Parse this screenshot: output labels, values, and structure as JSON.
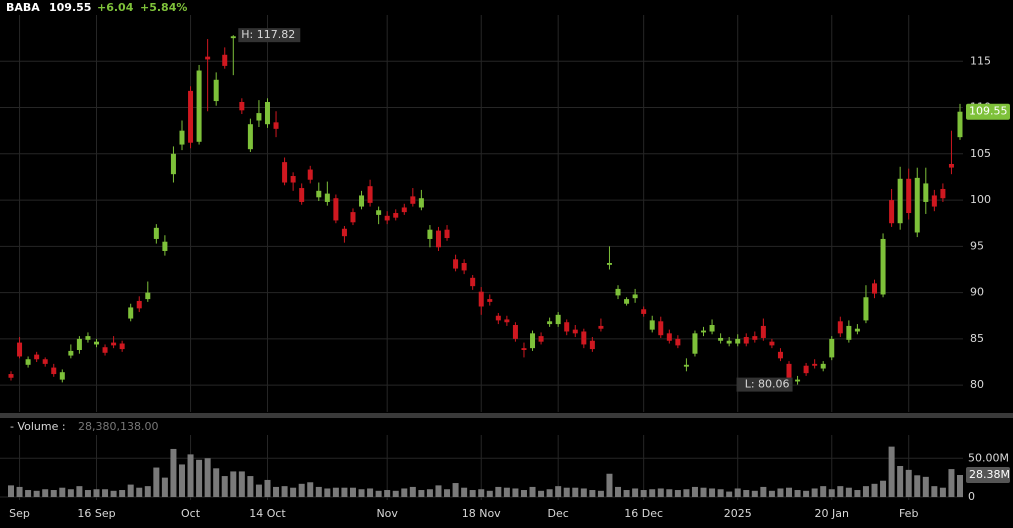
{
  "chart_data": {
    "type": "candlestick",
    "header": {
      "symbol": "BABA",
      "last": "109.55",
      "change": "+6.04",
      "change_percent": "+5.84%"
    },
    "categories": [
      null,
      "Sep",
      null,
      null,
      null,
      null,
      null,
      null,
      null,
      null,
      "16 Sep",
      null,
      null,
      null,
      null,
      null,
      null,
      null,
      null,
      null,
      null,
      "Oct",
      null,
      null,
      null,
      null,
      null,
      null,
      null,
      null,
      "14 Oct",
      null,
      null,
      null,
      null,
      null,
      null,
      null,
      null,
      null,
      null,
      null,
      null,
      null,
      "Nov",
      null,
      null,
      null,
      null,
      null,
      null,
      null,
      null,
      null,
      null,
      "18 Nov",
      null,
      null,
      null,
      null,
      null,
      null,
      null,
      null,
      "Dec",
      null,
      null,
      null,
      null,
      null,
      null,
      null,
      null,
      null,
      "16 Dec",
      null,
      null,
      null,
      null,
      null,
      null,
      null,
      null,
      null,
      null,
      "2025",
      null,
      null,
      null,
      null,
      null,
      null,
      null,
      null,
      null,
      null,
      "20 Jan",
      null,
      null,
      null,
      null,
      null,
      null,
      null,
      null,
      "Feb",
      null,
      null,
      null,
      null,
      null,
      null
    ],
    "open": [
      81.2,
      84.6,
      82.2,
      83.3,
      82.8,
      81.9,
      80.6,
      83.2,
      83.8,
      84.9,
      84.4,
      84.1,
      84.6,
      84.5,
      87.2,
      89.1,
      89.3,
      95.8,
      94.5,
      102.8,
      106.0,
      111.8,
      106.3,
      115.5,
      110.7,
      115.7,
      117.5,
      110.6,
      105.5,
      108.6,
      108.2,
      108.4,
      104.1,
      102.6,
      101.3,
      103.3,
      100.3,
      99.8,
      100.2,
      96.9,
      98.7,
      99.3,
      101.5,
      98.4,
      98.3,
      98.6,
      99.2,
      100.4,
      99.2,
      95.8,
      96.7,
      96.8,
      93.6,
      93.2,
      91.6,
      90.1,
      89.3,
      87.5,
      87.1,
      86.5,
      84.0,
      84.0,
      85.3,
      86.6,
      86.6,
      86.8,
      86.0,
      85.8,
      84.8,
      86.4,
      93.0,
      89.7,
      88.8,
      89.4,
      88.2,
      86.0,
      86.9,
      85.6,
      85.0,
      82.0,
      83.4,
      85.7,
      85.8,
      84.8,
      84.5,
      84.5,
      85.2,
      85.3,
      86.4,
      84.7,
      83.6,
      82.3,
      80.4,
      82.1,
      82.3,
      81.8,
      83.0,
      86.9,
      84.9,
      85.8,
      87.0,
      91.0,
      89.8,
      100.0,
      97.5,
      102.3,
      96.5,
      99.8,
      100.5,
      101.2,
      103.9,
      106.8
    ],
    "high": [
      81.5,
      85.2,
      83.1,
      83.6,
      83.0,
      82.3,
      81.7,
      84.4,
      85.3,
      85.7,
      85.0,
      84.4,
      85.3,
      84.8,
      88.8,
      89.6,
      91.2,
      97.4,
      96.2,
      105.8,
      108.6,
      112.3,
      114.6,
      117.4,
      113.8,
      116.5,
      117.82,
      111.0,
      108.8,
      110.8,
      111.0,
      109.6,
      104.6,
      103.0,
      101.8,
      103.7,
      101.9,
      102.0,
      100.6,
      97.2,
      99.1,
      101.0,
      102.2,
      99.3,
      98.8,
      99.0,
      99.6,
      101.3,
      101.1,
      97.3,
      97.1,
      97.3,
      94.1,
      93.6,
      91.9,
      90.6,
      89.8,
      87.8,
      87.5,
      86.8,
      84.6,
      85.9,
      85.7,
      87.3,
      87.9,
      87.1,
      86.5,
      86.1,
      85.2,
      87.2,
      95.0,
      90.8,
      89.5,
      90.4,
      88.5,
      87.5,
      87.4,
      86.0,
      85.4,
      82.9,
      85.9,
      86.3,
      87.1,
      85.6,
      85.2,
      85.5,
      85.6,
      85.8,
      87.2,
      85.0,
      84.0,
      82.6,
      81.0,
      82.4,
      82.8,
      82.6,
      85.3,
      87.4,
      87.0,
      86.6,
      90.8,
      91.4,
      96.4,
      101.2,
      103.6,
      103.4,
      103.5,
      103.5,
      101.1,
      101.8,
      107.5,
      110.4
    ],
    "low": [
      80.5,
      82.9,
      81.9,
      82.5,
      82.0,
      80.9,
      80.3,
      82.9,
      83.4,
      84.6,
      84.1,
      83.2,
      84.0,
      83.6,
      86.9,
      87.9,
      89.0,
      95.3,
      94.0,
      101.9,
      105.4,
      105.6,
      106.0,
      109.6,
      110.2,
      114.2,
      113.5,
      109.3,
      105.2,
      107.9,
      107.8,
      106.8,
      101.6,
      101.0,
      99.5,
      101.8,
      99.9,
      99.4,
      97.5,
      95.4,
      97.3,
      99.0,
      99.3,
      97.4,
      97.4,
      97.8,
      98.4,
      99.3,
      98.9,
      94.9,
      94.5,
      95.6,
      92.3,
      92.0,
      90.3,
      87.6,
      88.6,
      86.6,
      86.4,
      84.7,
      83.0,
      83.7,
      84.4,
      86.3,
      86.3,
      85.4,
      85.2,
      84.0,
      83.6,
      85.8,
      92.5,
      89.3,
      88.6,
      88.9,
      87.4,
      85.7,
      85.1,
      84.5,
      84.0,
      81.5,
      83.1,
      85.3,
      85.5,
      84.5,
      84.2,
      84.2,
      84.2,
      84.6,
      84.8,
      84.0,
      82.6,
      80.5,
      80.06,
      81.0,
      81.8,
      81.5,
      82.7,
      85.2,
      84.6,
      85.5,
      86.7,
      89.4,
      89.5,
      97.1,
      96.8,
      97.9,
      96.0,
      98.5,
      98.8,
      99.8,
      102.8,
      106.5
    ],
    "close": [
      80.8,
      83.1,
      82.8,
      82.8,
      82.3,
      81.2,
      81.4,
      83.7,
      85.0,
      85.3,
      84.7,
      83.5,
      84.3,
      83.9,
      88.4,
      88.3,
      90.0,
      97.0,
      95.5,
      105.0,
      107.5,
      106.2,
      114.0,
      115.2,
      113.0,
      114.5,
      117.7,
      109.7,
      108.2,
      109.4,
      110.6,
      107.7,
      101.9,
      101.9,
      99.8,
      102.2,
      101.0,
      100.7,
      97.8,
      96.1,
      97.6,
      100.5,
      99.7,
      98.9,
      97.8,
      98.1,
      98.7,
      99.6,
      100.2,
      96.8,
      94.9,
      95.9,
      92.6,
      92.4,
      90.7,
      88.5,
      89.0,
      87.0,
      86.8,
      85.0,
      83.8,
      85.6,
      84.7,
      86.9,
      87.6,
      85.8,
      85.6,
      84.4,
      83.9,
      86.1,
      93.2,
      90.4,
      89.3,
      89.8,
      87.7,
      87.0,
      85.4,
      84.8,
      84.3,
      82.2,
      85.6,
      85.9,
      86.5,
      85.1,
      84.8,
      85.0,
      84.5,
      84.9,
      85.1,
      84.3,
      82.9,
      80.8,
      80.6,
      81.3,
      82.1,
      82.3,
      85.0,
      85.6,
      86.4,
      86.1,
      89.5,
      89.9,
      95.8,
      97.5,
      102.3,
      98.6,
      102.4,
      101.8,
      99.3,
      100.2,
      103.51,
      109.55
    ],
    "volume": [
      15000000,
      13000000,
      9000000,
      8000000,
      10000000,
      9000000,
      12000000,
      10000000,
      14000000,
      9000000,
      10000000,
      10000000,
      8000000,
      9000000,
      16000000,
      12000000,
      14000000,
      38000000,
      25000000,
      62000000,
      42000000,
      55000000,
      48000000,
      50000000,
      37000000,
      27000000,
      33000000,
      33000000,
      27000000,
      16000000,
      22000000,
      13000000,
      14000000,
      12000000,
      17000000,
      19000000,
      13000000,
      11000000,
      12000000,
      12000000,
      12000000,
      10000000,
      11000000,
      8000000,
      9000000,
      8000000,
      11000000,
      13000000,
      9000000,
      10000000,
      15000000,
      10000000,
      18000000,
      12000000,
      9000000,
      10000000,
      8000000,
      13000000,
      12000000,
      11000000,
      9000000,
      13000000,
      8000000,
      10000000,
      14000000,
      12000000,
      12000000,
      11000000,
      9000000,
      8000000,
      30000000,
      13000000,
      9000000,
      11000000,
      9000000,
      10000000,
      11000000,
      10000000,
      9000000,
      10000000,
      13000000,
      12000000,
      11000000,
      10000000,
      7000000,
      11000000,
      9000000,
      8000000,
      13000000,
      8000000,
      11000000,
      12000000,
      9000000,
      8000000,
      11000000,
      14000000,
      10000000,
      14000000,
      12000000,
      9000000,
      14000000,
      17000000,
      21000000,
      65000000,
      40000000,
      35000000,
      28000000,
      26000000,
      14000000,
      12000000,
      36000000,
      28380138
    ],
    "up_color": "#7ec13a",
    "down_color": "#cf1820",
    "volume_color": "#7a7a7a",
    "ylim": [
      77.1,
      120
    ],
    "yticks": [
      80,
      85,
      90,
      95,
      100,
      105,
      110,
      115
    ],
    "volume_ylim": [
      0,
      80000000
    ],
    "volume_yticks": [
      0,
      {
        "value": 50000000,
        "label": "50.00M"
      }
    ],
    "volume_legend": "- Volume :",
    "volume_value_label": "28,380,138.00",
    "volume_badge": "28.38M",
    "high_label": "H: 117.82",
    "low_label": "L: 80.06",
    "grid": true
  }
}
